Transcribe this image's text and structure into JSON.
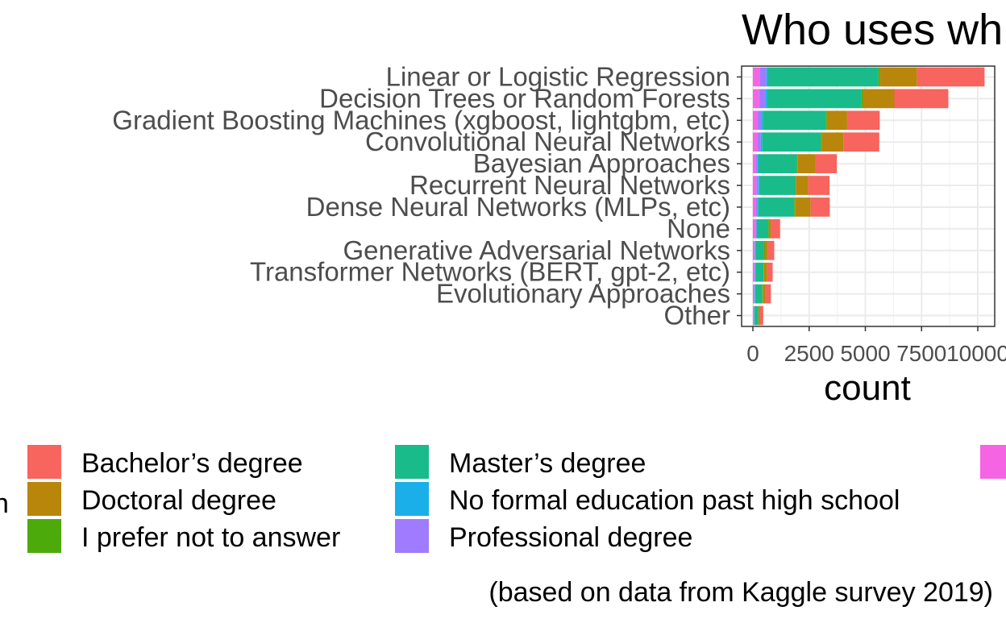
{
  "chart_data": {
    "type": "bar",
    "orientation": "horizontal",
    "stacked": true,
    "title": "Who uses wh",
    "xlabel": "count",
    "ylabel": "",
    "xlim": [
      0,
      10600
    ],
    "xticks": [
      0,
      2500,
      5000,
      7500,
      10000
    ],
    "xtick_labels": [
      "0",
      "2500",
      "5000",
      "7500",
      "10000"
    ],
    "grid": true,
    "legend_position": "bottom",
    "categories": [
      "Linear or Logistic Regression",
      "Decision Trees or Random Forests",
      "Gradient Boosting Machines (xgboost, lightgbm, etc)",
      "Convolutional Neural Networks",
      "Bayesian Approaches",
      "Recurrent Neural Networks",
      "Dense Neural Networks (MLPs, etc)",
      "None",
      "Generative Adversarial Networks",
      "Transformer Networks (BERT, gpt-2, etc)",
      "Evolutionary Approaches",
      "Other"
    ],
    "series": [
      {
        "name": "",
        "color": "#F564E3",
        "values": [
          300,
          280,
          200,
          200,
          130,
          150,
          120,
          130,
          60,
          60,
          50,
          40
        ]
      },
      {
        "name": "Professional degree",
        "color": "#9E7BFF",
        "values": [
          300,
          280,
          180,
          150,
          80,
          90,
          80,
          30,
          40,
          40,
          30,
          20
        ]
      },
      {
        "name": "No formal education past high school",
        "color": "#1AAFE9",
        "values": [
          80,
          70,
          60,
          70,
          40,
          40,
          40,
          20,
          20,
          20,
          20,
          10
        ]
      },
      {
        "name": "Master's degree",
        "color": "#19BB8A",
        "values": [
          4900,
          4200,
          2800,
          2600,
          1700,
          1600,
          1600,
          500,
          380,
          350,
          320,
          170
        ]
      },
      {
        "name": "I prefer not to answer",
        "color": "#4DAA0B",
        "values": [
          70,
          60,
          50,
          50,
          30,
          30,
          30,
          30,
          20,
          20,
          20,
          10
        ]
      },
      {
        "name": "Doctoral degree",
        "color": "#B8860B",
        "values": [
          1650,
          1400,
          900,
          950,
          800,
          550,
          700,
          80,
          150,
          150,
          130,
          70
        ]
      },
      {
        "name": "Bachelor's degree",
        "color": "#F8645E",
        "values": [
          3000,
          2400,
          1450,
          1600,
          950,
          950,
          850,
          420,
          280,
          240,
          230,
          140
        ]
      }
    ],
    "legend": {
      "items": [
        {
          "label": "Bachelor’s degree",
          "color": "#F8645E"
        },
        {
          "label": "Doctoral degree",
          "color": "#B8860B"
        },
        {
          "label": "I prefer not to answer",
          "color": "#4DAA0B"
        },
        {
          "label": "Master’s degree",
          "color": "#19BB8A"
        },
        {
          "label": "No formal education past high school",
          "color": "#1AAFE9"
        },
        {
          "label": "Professional degree",
          "color": "#9E7BFF"
        },
        {
          "label": "",
          "color": "#F564E3"
        }
      ],
      "title_fragment": "n"
    },
    "caption": "(based on data from Kaggle survey 2019)"
  }
}
